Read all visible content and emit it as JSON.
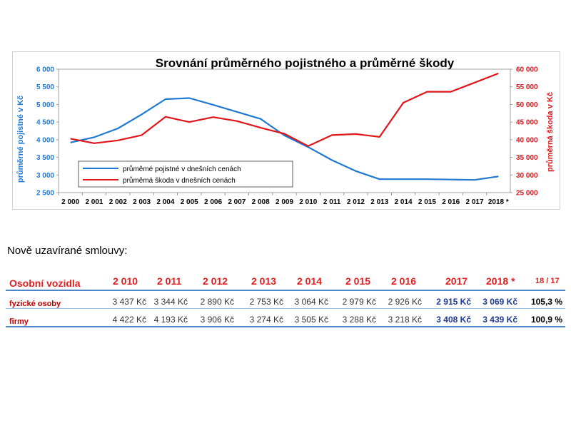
{
  "chart_data": {
    "type": "line",
    "title": "Srovnání průměrného pojistného a průměrné škody",
    "x": [
      "2 000",
      "2 001",
      "2 002",
      "2 003",
      "2 004",
      "2 005",
      "2 006",
      "2 007",
      "2 008",
      "2 009",
      "2 010",
      "2 011",
      "2 012",
      "2 013",
      "2 014",
      "2 015",
      "2 016",
      "2 017",
      "2018 *"
    ],
    "ylabel_left": "průměrné pojistné v Kč",
    "ylabel_right": "průměrná škoda v Kč",
    "ylim_left": [
      2500,
      6000
    ],
    "ylim_right": [
      25000,
      60000
    ],
    "yticks_left": [
      "2 500",
      "3 000",
      "3 500",
      "4 000",
      "4 500",
      "5 000",
      "5 500",
      "6 000"
    ],
    "yticks_right": [
      "25 000",
      "30 000",
      "35 000",
      "40 000",
      "45 000",
      "50 000",
      "55 000",
      "60 000"
    ],
    "grid": false,
    "legend_position": "bottom-left",
    "series": [
      {
        "name": "průměmé pojistné v dnešních cenách",
        "axis": "left",
        "color": "#1f78d1",
        "values": [
          3920,
          4070,
          4320,
          4720,
          5150,
          5180,
          4990,
          4790,
          4590,
          4120,
          3790,
          3420,
          3110,
          2880,
          2880,
          2880,
          2870,
          2860,
          2960
        ]
      },
      {
        "name": "průměmá škoda v dnešních cenách",
        "axis": "right",
        "color": "#e0161b",
        "values": [
          40300,
          39000,
          39800,
          41300,
          46500,
          45000,
          46400,
          45300,
          43400,
          41700,
          38200,
          41300,
          41600,
          40800,
          50500,
          53600,
          53600,
          56200,
          58800
        ]
      }
    ]
  },
  "subtitle": "Nově uzavírané smlouvy:",
  "table": {
    "title": "Osobní vozidla",
    "columns": [
      "2 010",
      "2 011",
      "2 012",
      "2 013",
      "2 014",
      "2 015",
      "2 016",
      "2017",
      "2018 *",
      "18 / 17"
    ],
    "rows": [
      {
        "label": "fyzické osoby",
        "cells": [
          "3 437 Kč",
          "3 344 Kč",
          "2 890 Kč",
          "2 753 Kč",
          "3 064 Kč",
          "2 979 Kč",
          "2 926 Kč",
          "2 915 Kč",
          "3 069 Kč",
          "105,3 %"
        ]
      },
      {
        "label": "firmy",
        "cells": [
          "4 422 Kč",
          "4 193 Kč",
          "3 906 Kč",
          "3 274 Kč",
          "3 505 Kč",
          "3 288 Kč",
          "3 218 Kč",
          "3 408 Kč",
          "3 439 Kč",
          "100,9 %"
        ]
      }
    ]
  }
}
